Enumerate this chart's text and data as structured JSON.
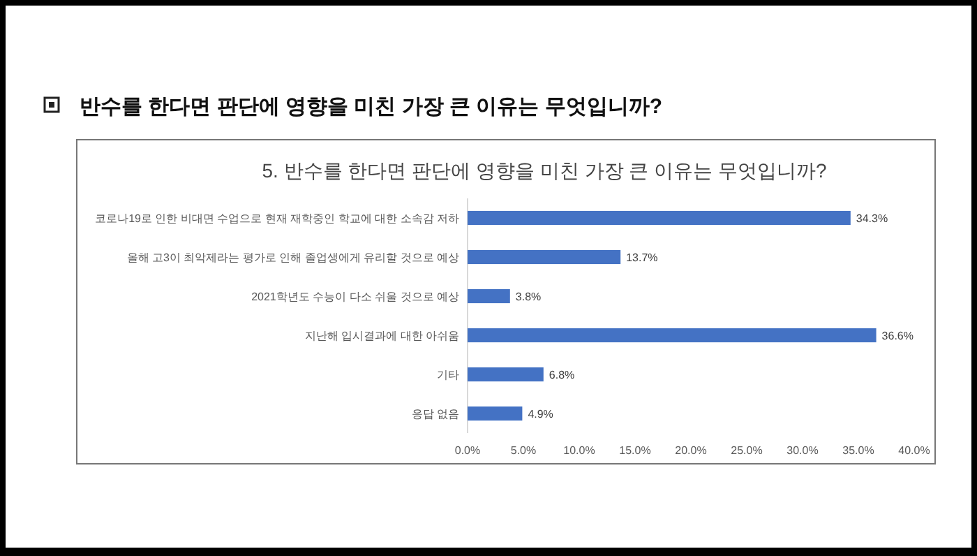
{
  "chart_data": {
    "type": "bar",
    "orientation": "horizontal",
    "title": "반수를 한다면 판단에 영향을 미친 가장 큰 이유는 무엇입니까?",
    "subtitle": "5. 반수를 한다면 판단에 영향을 미친 가장 큰 이유는 무엇입니까?",
    "categories": [
      "코로나19로 인한 비대면 수업으로 현재 재학중인 학교에 대한 소속감 저하",
      "올해 고3이 최악제라는 평가로 인해 졸업생에게 유리할 것으로 예상",
      "2021학년도 수능이 다소 쉬울 것으로 예상",
      "지난해 입시결과에 대한 아쉬움",
      "기타",
      "응답 없음"
    ],
    "values": [
      34.3,
      13.7,
      3.8,
      36.6,
      6.8,
      4.9
    ],
    "value_labels": [
      "34.3%",
      "13.7%",
      "3.8%",
      "36.6%",
      "6.8%",
      "4.9%"
    ],
    "color": "#4472c4",
    "xlim": [
      0,
      40
    ],
    "xticks": [
      {
        "value": 0,
        "label": "0.0%"
      },
      {
        "value": 5,
        "label": "5.0%"
      },
      {
        "value": 10,
        "label": "10.0%"
      },
      {
        "value": 15,
        "label": "15.0%"
      },
      {
        "value": 20,
        "label": "20.0%"
      },
      {
        "value": 25,
        "label": "25.0%"
      },
      {
        "value": 30,
        "label": "30.0%"
      },
      {
        "value": 35,
        "label": "35.0%"
      },
      {
        "value": 40,
        "label": "40.0%"
      }
    ]
  }
}
